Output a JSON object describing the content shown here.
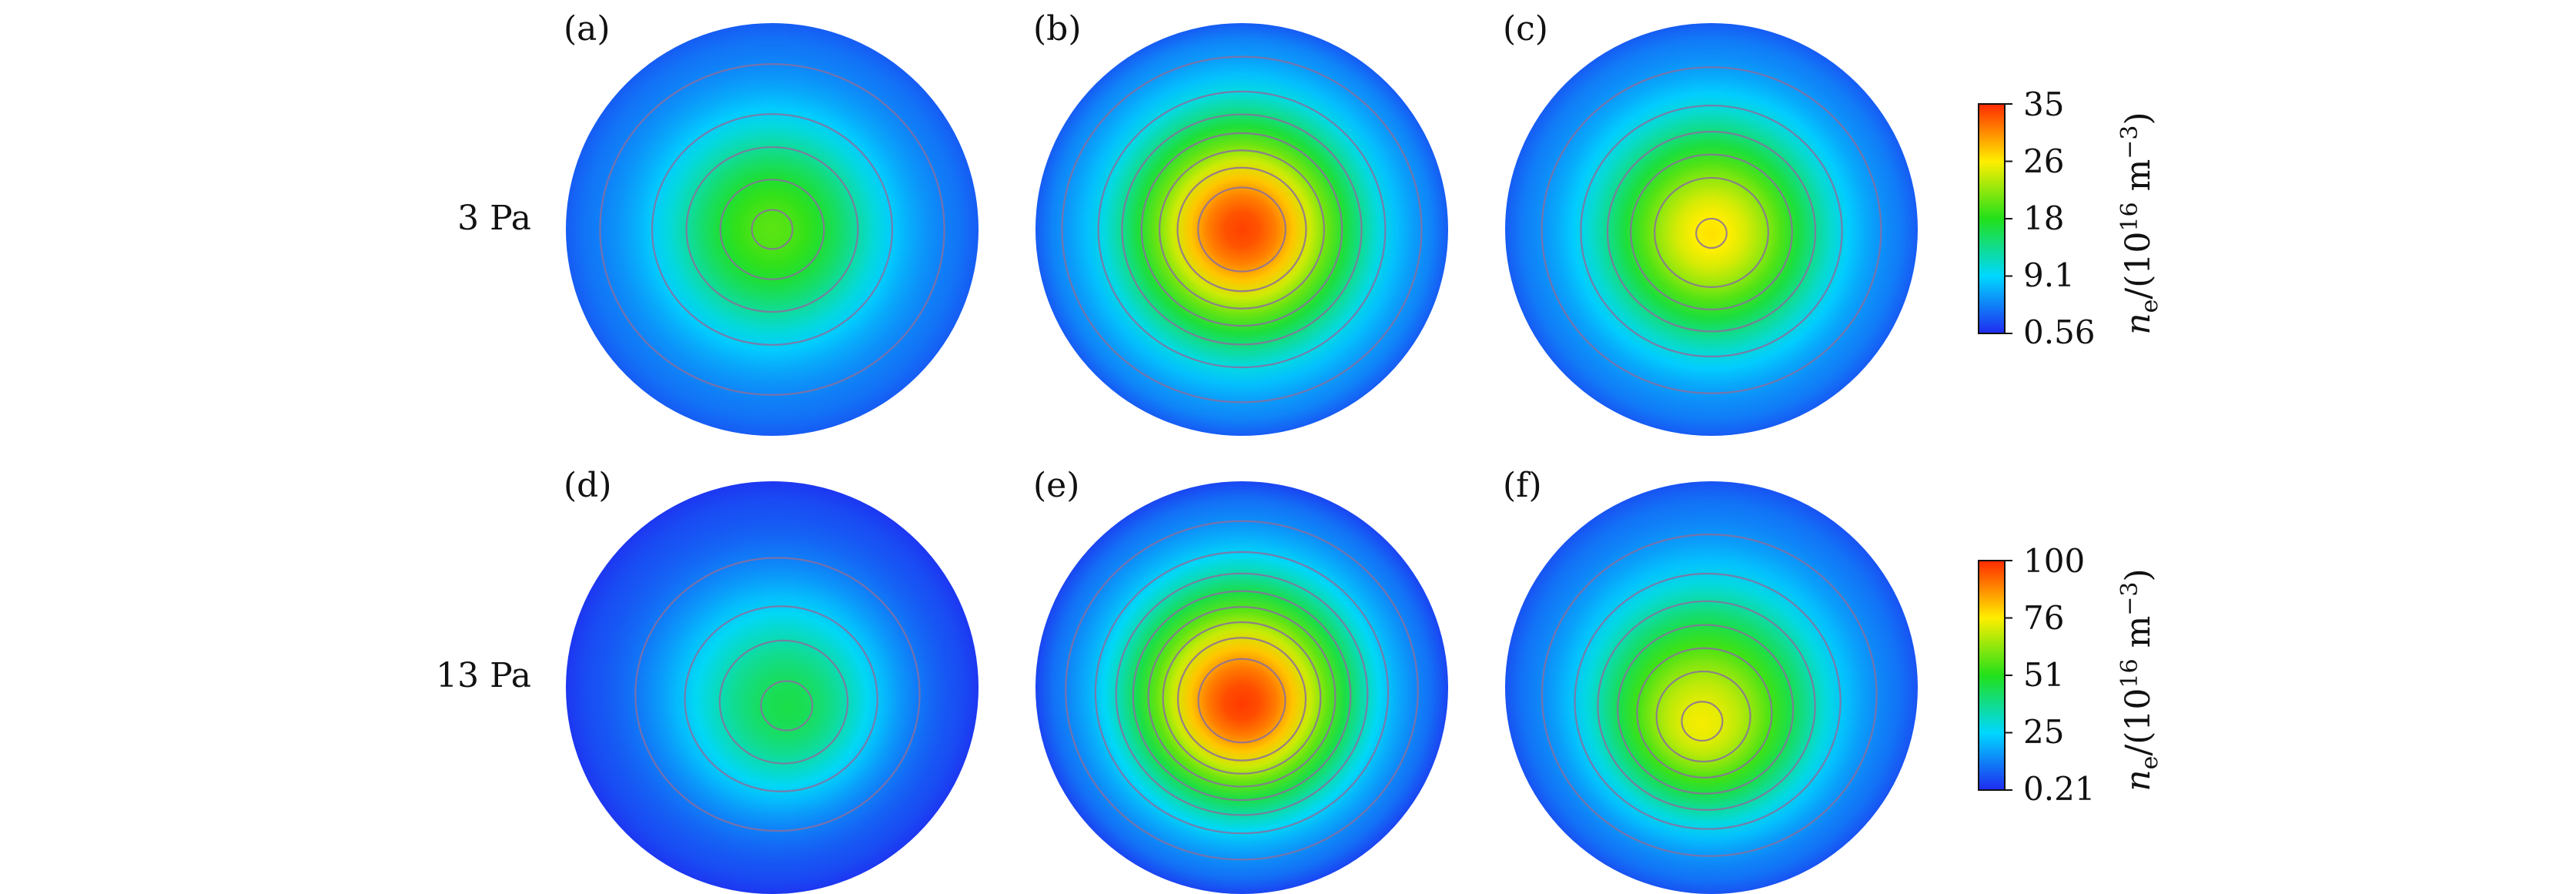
{
  "colors": {
    "scale": [
      "#1f2bf0",
      "#00d8ff",
      "#22e01a",
      "#ffee00",
      "#ff2a00"
    ],
    "contour": "#8a6f9e"
  },
  "row_labels": [
    "3 Pa",
    "13 Pa"
  ],
  "colorbars": [
    {
      "ticks": [
        "35",
        "26",
        "18",
        "9.1",
        "0.56"
      ],
      "title_main": "n",
      "title_sub": "e",
      "title_rest": "/(10",
      "title_exp": "16",
      "title_unit": " m",
      "title_unit_exp": "−3",
      "title_close": ")"
    },
    {
      "ticks": [
        "100",
        "76",
        "51",
        "25",
        "0.21"
      ],
      "title_main": "n",
      "title_sub": "e",
      "title_rest": "/(10",
      "title_exp": "16",
      "title_unit": " m",
      "title_unit_exp": "−3",
      "title_close": ")"
    }
  ],
  "chart_data": {
    "type": "heatmap",
    "panels": [
      {
        "label": "(a)",
        "row": 0,
        "col": 0,
        "range": [
          0.56,
          35
        ],
        "center_value": 20,
        "edge_value": 3,
        "peak_offset": [
          0,
          0
        ],
        "contours": [
          5,
          9,
          13,
          17,
          19.5
        ]
      },
      {
        "label": "(b)",
        "row": 0,
        "col": 1,
        "range": [
          0.56,
          35
        ],
        "center_value": 34,
        "edge_value": 3,
        "peak_offset": [
          0,
          0
        ],
        "contours": [
          6,
          10,
          14,
          18,
          22,
          26,
          30
        ]
      },
      {
        "label": "(c)",
        "row": 0,
        "col": 2,
        "range": [
          0.56,
          35
        ],
        "center_value": 27,
        "edge_value": 3,
        "peak_offset": [
          0,
          0.02
        ],
        "contours": [
          6,
          10,
          14,
          18,
          22,
          26.6
        ]
      },
      {
        "label": "(d)",
        "row": 1,
        "col": 0,
        "range": [
          0.21,
          100
        ],
        "center_value": 45,
        "edge_value": 2,
        "peak_offset": [
          0.08,
          0.1
        ],
        "contours": [
          12,
          24,
          34,
          43
        ]
      },
      {
        "label": "(e)",
        "row": 1,
        "col": 1,
        "range": [
          0.21,
          100
        ],
        "center_value": 98,
        "edge_value": 4,
        "peak_offset": [
          0,
          0.08
        ],
        "contours": [
          14,
          24,
          34,
          44,
          54,
          64,
          74,
          86
        ]
      },
      {
        "label": "(f)",
        "row": 1,
        "col": 2,
        "range": [
          0.21,
          100
        ],
        "center_value": 74,
        "edge_value": 6,
        "peak_offset": [
          -0.05,
          0.18
        ],
        "contours": [
          15,
          25,
          35,
          45,
          55,
          64,
          72
        ]
      }
    ]
  }
}
